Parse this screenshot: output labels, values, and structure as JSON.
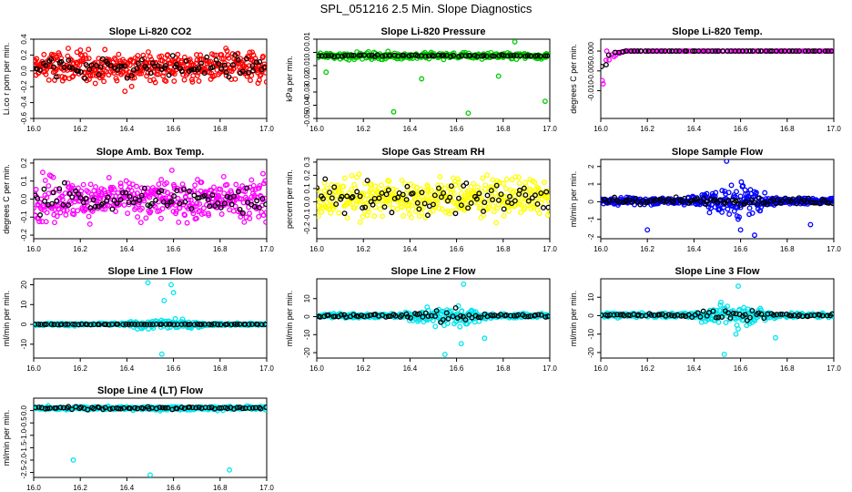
{
  "page": {
    "title": "SPL_051216  2.5 Min. Slope Diagnostics"
  },
  "chart_data": [
    {
      "type": "scatter",
      "title": "Slope Li-820 CO2",
      "ylabel": "Li.co r pom per min.",
      "xlim": [
        16.0,
        17.0
      ],
      "ylim": [
        -0.6,
        0.4
      ],
      "x_ticks": [
        "16.0",
        "16.2",
        "16.4",
        "16.6",
        "16.8",
        "17.0"
      ],
      "y_ticks": [
        "0.4",
        "0.2",
        "0.0",
        "-0.2",
        "-0.4",
        "-0.6"
      ],
      "y_tick_values": [
        0.4,
        0.2,
        0.0,
        -0.2,
        -0.4,
        -0.6
      ],
      "color": "#ff0000",
      "overlay_color": "#000000",
      "main": {
        "n": 420,
        "mode": "noise",
        "center": 0.05,
        "spread": 0.17
      },
      "overlay": {
        "n": 85,
        "mode": "noise",
        "center": 0.05,
        "spread": 0.11
      }
    },
    {
      "type": "scatter",
      "title": "Slope Li-820 Pressure",
      "ylabel": "kPa per min.",
      "xlim": [
        16.0,
        17.0
      ],
      "ylim": [
        -0.05,
        0.01
      ],
      "x_ticks": [
        "16.0",
        "16.2",
        "16.4",
        "16.6",
        "16.8",
        "17.0"
      ],
      "y_ticks": [
        "0.01",
        "0.0",
        "-0.01",
        "-0.02",
        "-0.03",
        "-0.04",
        "-0.05"
      ],
      "y_tick_values": [
        0.01,
        0.0,
        -0.01,
        -0.02,
        -0.03,
        -0.04,
        -0.05
      ],
      "color": "#00cc00",
      "overlay_color": "#000000",
      "main": {
        "n": 300,
        "mode": "band",
        "center": -0.0025,
        "spread": 0.0035
      },
      "overlay": {
        "n": 70,
        "mode": "band",
        "center": -0.0025,
        "spread": 0.0008
      },
      "outliers": [
        {
          "x": 16.04,
          "y": -0.015
        },
        {
          "x": 16.33,
          "y": -0.045
        },
        {
          "x": 16.65,
          "y": -0.046
        },
        {
          "x": 16.98,
          "y": -0.037
        },
        {
          "x": 16.85,
          "y": 0.008
        },
        {
          "x": 16.45,
          "y": -0.02
        },
        {
          "x": 16.78,
          "y": -0.018
        }
      ]
    },
    {
      "type": "scatter",
      "title": "Slope Li-820 Temp.",
      "ylabel": "degrees C per min.",
      "xlim": [
        16.0,
        17.0
      ],
      "ylim": [
        -0.017,
        0.003
      ],
      "x_ticks": [
        "16.0",
        "16.2",
        "16.4",
        "16.6",
        "16.8",
        "17.0"
      ],
      "y_ticks": [
        "0.000",
        "-0.005",
        "-0.010"
      ],
      "y_tick_values": [
        0.0,
        -0.005,
        -0.01
      ],
      "color": "#ff00ff",
      "overlay_color": "#000000",
      "main": {
        "n": 120,
        "mode": "decay",
        "center": 0.0,
        "spread": 0.011
      },
      "overlay": {
        "n": 60,
        "mode": "decay",
        "center": 0.0,
        "spread": 0.008
      }
    },
    {
      "type": "scatter",
      "title": "Slope Amb. Box Temp.",
      "ylabel": "degrees C per min.",
      "xlim": [
        16.0,
        17.0
      ],
      "ylim": [
        -0.22,
        0.22
      ],
      "x_ticks": [
        "16.0",
        "16.2",
        "16.4",
        "16.6",
        "16.8",
        "17.0"
      ],
      "y_ticks": [
        "0.2",
        "0.1",
        "0.0",
        "-0.1",
        "-0.2"
      ],
      "y_tick_values": [
        0.2,
        0.1,
        0.0,
        -0.1,
        -0.2
      ],
      "color": "#ff00ff",
      "overlay_color": "#000000",
      "main": {
        "n": 420,
        "mode": "noise",
        "center": 0.0,
        "spread": 0.1
      },
      "overlay": {
        "n": 85,
        "mode": "noise",
        "center": 0.0,
        "spread": 0.06
      }
    },
    {
      "type": "scatter",
      "title": "Slope Gas Stream RH",
      "ylabel": "percent per min.",
      "xlim": [
        16.0,
        17.0
      ],
      "ylim": [
        -0.28,
        0.32
      ],
      "x_ticks": [
        "16.0",
        "16.2",
        "16.4",
        "16.6",
        "16.8",
        "17.0"
      ],
      "y_ticks": [
        "0.3",
        "0.2",
        "0.1",
        "0.0",
        "-0.1",
        "-0.2"
      ],
      "y_tick_values": [
        0.3,
        0.2,
        0.1,
        0.0,
        -0.1,
        -0.2
      ],
      "color": "#ffff00",
      "overlay_color": "#000000",
      "main": {
        "n": 420,
        "mode": "noise",
        "center": 0.03,
        "spread": 0.12
      },
      "overlay": {
        "n": 85,
        "mode": "noise",
        "center": 0.03,
        "spread": 0.09
      }
    },
    {
      "type": "scatter",
      "title": "Slope Sample Flow",
      "ylabel": "ml/min per min.",
      "xlim": [
        16.0,
        17.0
      ],
      "ylim": [
        -2.1,
        2.4
      ],
      "x_ticks": [
        "16.0",
        "16.2",
        "16.4",
        "16.6",
        "16.8",
        "17.0"
      ],
      "y_ticks": [
        "2",
        "1",
        "0",
        "-1",
        "-2"
      ],
      "y_tick_values": [
        2,
        1,
        0,
        -1,
        -2
      ],
      "color": "#0000ff",
      "overlay_color": "#000000",
      "main": {
        "n": 440,
        "mode": "burst",
        "center": 0.05,
        "spread": 0.3
      },
      "overlay": {
        "n": 90,
        "mode": "noise",
        "center": 0.05,
        "spread": 0.15
      },
      "outliers": [
        {
          "x": 16.54,
          "y": 2.3
        },
        {
          "x": 16.6,
          "y": -1.6
        },
        {
          "x": 16.66,
          "y": -1.9
        },
        {
          "x": 16.2,
          "y": -1.6
        },
        {
          "x": 16.9,
          "y": -1.3
        }
      ]
    },
    {
      "type": "scatter",
      "title": "Slope Line 1 Flow",
      "ylabel": "ml/min per min.",
      "xlim": [
        16.0,
        17.0
      ],
      "ylim": [
        -17,
        23
      ],
      "x_ticks": [
        "16.0",
        "16.2",
        "16.4",
        "16.6",
        "16.8",
        "17.0"
      ],
      "y_ticks": [
        "20",
        "10",
        "0",
        "-10"
      ],
      "y_tick_values": [
        20,
        10,
        0,
        -10
      ],
      "color": "#00e5ee",
      "overlay_color": "#000000",
      "main": {
        "n": 320,
        "mode": "burst",
        "center": 0.0,
        "spread": 1.0
      },
      "overlay": {
        "n": 75,
        "mode": "band",
        "center": 0.0,
        "spread": 0.2
      },
      "outliers": [
        {
          "x": 16.49,
          "y": 21
        },
        {
          "x": 16.55,
          "y": -15
        },
        {
          "x": 16.59,
          "y": 20
        },
        {
          "x": 16.6,
          "y": 16
        },
        {
          "x": 16.56,
          "y": 12
        }
      ]
    },
    {
      "type": "scatter",
      "title": "Slope Line 2 Flow",
      "ylabel": "ml/min per min.",
      "xlim": [
        16.0,
        17.0
      ],
      "ylim": [
        -23,
        21
      ],
      "x_ticks": [
        "16.0",
        "16.2",
        "16.4",
        "16.6",
        "16.8",
        "17.0"
      ],
      "y_ticks": [
        "10",
        "0",
        "-10",
        "-20"
      ],
      "y_tick_values": [
        10,
        0,
        -10,
        -20
      ],
      "color": "#00e5ee",
      "overlay_color": "#000000",
      "main": {
        "n": 360,
        "mode": "burst",
        "center": 0.5,
        "spread": 2.0
      },
      "overlay": {
        "n": 80,
        "mode": "burst",
        "center": 0.5,
        "spread": 1.2
      },
      "outliers": [
        {
          "x": 16.55,
          "y": -21
        },
        {
          "x": 16.63,
          "y": 18
        },
        {
          "x": 16.62,
          "y": -15
        },
        {
          "x": 16.72,
          "y": -12
        }
      ]
    },
    {
      "type": "scatter",
      "title": "Slope Line 3 Flow",
      "ylabel": "ml/min per min.",
      "xlim": [
        16.0,
        17.0
      ],
      "ylim": [
        -23,
        20
      ],
      "x_ticks": [
        "16.0",
        "16.2",
        "16.4",
        "16.6",
        "16.8",
        "17.0"
      ],
      "y_ticks": [
        "10",
        "0",
        "-10",
        "-20"
      ],
      "y_tick_values": [
        10,
        0,
        -10,
        -20
      ],
      "color": "#00e5ee",
      "overlay_color": "#000000",
      "main": {
        "n": 360,
        "mode": "burst",
        "center": 0.3,
        "spread": 2.0
      },
      "overlay": {
        "n": 80,
        "mode": "burst",
        "center": 0.3,
        "spread": 1.2
      },
      "outliers": [
        {
          "x": 16.53,
          "y": -21
        },
        {
          "x": 16.59,
          "y": 16
        },
        {
          "x": 16.75,
          "y": -12
        },
        {
          "x": 16.58,
          "y": -10
        }
      ]
    },
    {
      "type": "scatter",
      "title": "Slope Line 4 (LT) Flow",
      "ylabel": "ml/min per min.",
      "xlim": [
        16.0,
        17.0
      ],
      "ylim": [
        -2.7,
        0.5
      ],
      "x_ticks": [
        "16.0",
        "16.2",
        "16.4",
        "16.6",
        "16.8",
        "17.0"
      ],
      "y_ticks": [
        "0.0",
        "-0.5",
        "-1.0",
        "-1.5",
        "-2.0",
        "-2.5"
      ],
      "y_tick_values": [
        0.0,
        -0.5,
        -1.0,
        -1.5,
        -2.0,
        -2.5
      ],
      "color": "#00e5ee",
      "overlay_color": "#000000",
      "main": {
        "n": 340,
        "mode": "band",
        "center": 0.1,
        "spread": 0.1
      },
      "overlay": {
        "n": 75,
        "mode": "band",
        "center": 0.1,
        "spread": 0.07
      },
      "outliers": [
        {
          "x": 16.17,
          "y": -2.0
        },
        {
          "x": 16.5,
          "y": -2.6
        },
        {
          "x": 16.84,
          "y": -2.4
        }
      ]
    }
  ]
}
